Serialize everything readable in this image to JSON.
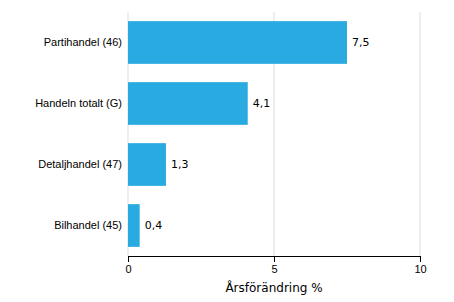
{
  "chart_data": {
    "type": "bar",
    "orientation": "horizontal",
    "categories": [
      "Bilhandel (45)",
      "Detaljhandel (47)",
      "Handeln totalt (G)",
      "Partihandel (46)"
    ],
    "values": [
      0.4,
      1.3,
      4.1,
      7.5
    ],
    "value_labels": [
      "0,4",
      "1,3",
      "4,1",
      "7,5"
    ],
    "data_labels": true,
    "color": "#29abe2",
    "xlabel": "Årsförändring %",
    "xlim": [
      0,
      10
    ],
    "xticks": [
      0,
      5,
      10
    ],
    "grid": true
  }
}
